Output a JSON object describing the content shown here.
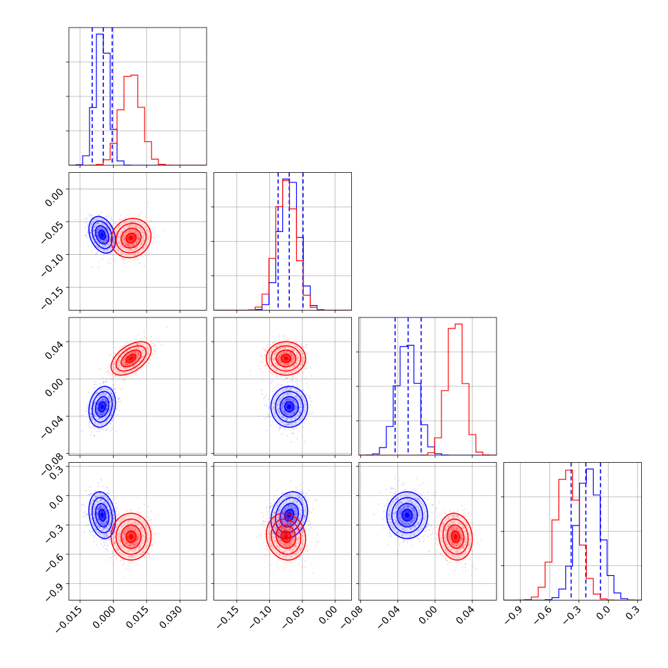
{
  "chart_data": {
    "type": "corner",
    "title": "",
    "grid": true,
    "colors": {
      "blue": "#0000ff",
      "red": "#ff0000"
    },
    "parameters": [
      {
        "ticks": [
          -0.015,
          0.0,
          0.015,
          0.03
        ],
        "tick_labels": [
          "−0.015",
          "0.000",
          "0.015",
          "0.030"
        ],
        "range": [
          -0.02,
          0.042
        ]
      },
      {
        "ticks": [
          -0.15,
          -0.1,
          -0.05,
          0.0
        ],
        "tick_labels": [
          "−0.15",
          "−0.10",
          "−0.05",
          "0.00"
        ],
        "range": [
          -0.185,
          0.025
        ]
      },
      {
        "ticks": [
          -0.08,
          -0.04,
          0.0,
          0.04
        ],
        "tick_labels": [
          "−0.08",
          "−0.04",
          "0.00",
          "0.04"
        ],
        "range": [
          -0.082,
          0.066
        ]
      },
      {
        "ticks": [
          -0.9,
          -0.6,
          -0.3,
          0.0,
          0.3
        ],
        "tick_labels": [
          "−0.9",
          "−0.6",
          "−0.3",
          "0.0",
          "0.3"
        ],
        "range": [
          -1.07,
          0.34
        ]
      }
    ],
    "series": [
      {
        "color": "blue",
        "mean": [
          -0.005,
          -0.07,
          -0.03,
          -0.2
        ],
        "std": [
          0.003,
          0.014,
          0.011,
          0.12
        ],
        "rho": [
          [
            1,
            -0.3,
            0.2,
            -0.2
          ],
          [
            -0.3,
            1,
            0.0,
            0.2
          ],
          [
            0.2,
            0.0,
            1,
            0.0
          ],
          [
            -0.2,
            0.2,
            0.0,
            1
          ]
        ],
        "quantiles": [
          [
            -0.0095,
            -0.0045,
            -0.0005
          ],
          [
            -0.087,
            -0.07,
            -0.049
          ],
          [
            -0.043,
            -0.029,
            -0.015
          ],
          [
            -0.38,
            -0.23,
            -0.08
          ]
        ]
      },
      {
        "color": "red",
        "mean": [
          0.008,
          -0.075,
          0.022,
          -0.42
        ],
        "std": [
          0.0045,
          0.015,
          0.009,
          0.12
        ],
        "rho": [
          [
            1,
            0.1,
            0.5,
            0.0
          ],
          [
            0.1,
            1,
            0.0,
            -0.1
          ],
          [
            0.5,
            0.0,
            1,
            -0.1
          ],
          [
            0.0,
            -0.1,
            -0.1,
            1
          ]
        ],
        "quantiles": null
      }
    ]
  }
}
